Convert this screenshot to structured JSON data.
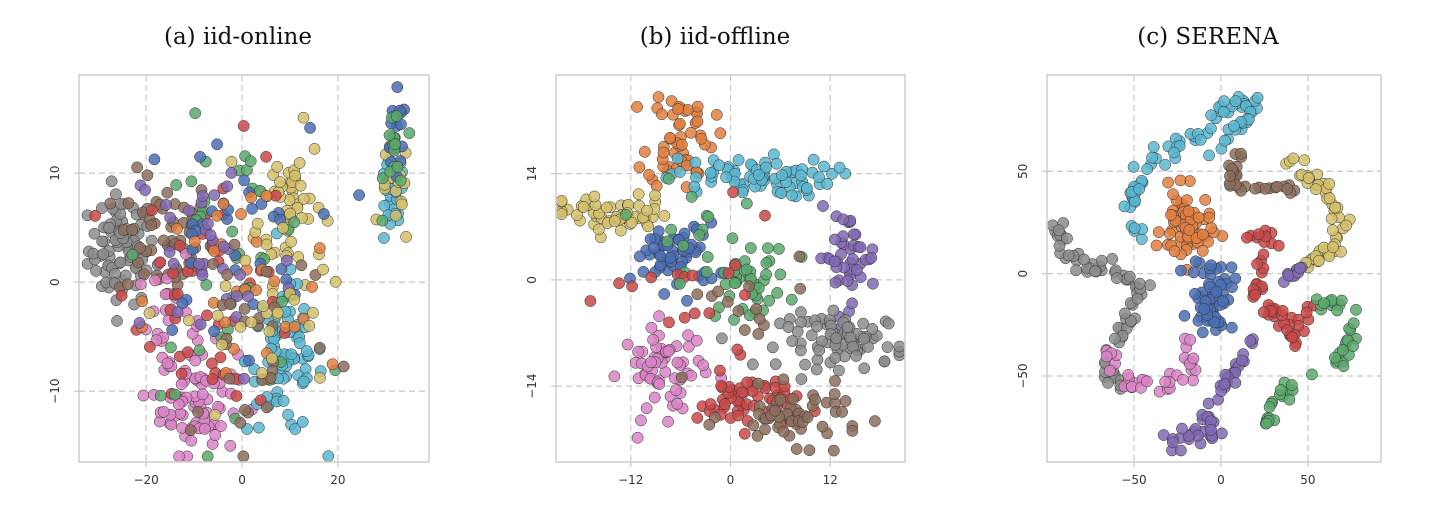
{
  "chart_data": [
    {
      "type": "scatter",
      "title": "(a) iid-online",
      "xlabel": "",
      "ylabel": "",
      "xlim": [
        -34,
        39
      ],
      "ylim": [
        -16.5,
        19
      ],
      "xticks": [
        -20,
        0,
        20
      ],
      "yticks": [
        -10,
        0,
        10
      ],
      "xtick_labels": [
        "−20",
        "0",
        "20"
      ],
      "ytick_labels": [
        "−10",
        "0",
        "10"
      ],
      "grid": true,
      "clusters": [
        {
          "color": "#8c8c8c",
          "cx": -25,
          "cy": 3,
          "sx": 3.5,
          "sy": 2.5,
          "n": 90
        },
        {
          "color": "#8c6d5c",
          "cx": -16,
          "cy": 4,
          "sx": 5,
          "sy": 3,
          "n": 55
        },
        {
          "color": "#d4bf6b",
          "cx": 10,
          "cy": 7,
          "sx": 3.5,
          "sy": 3.5,
          "n": 55
        },
        {
          "color": "#d983c4",
          "cx": -9,
          "cy": -11,
          "sx": 4,
          "sy": 2.5,
          "n": 70
        },
        {
          "color": "#d983c4",
          "cx": -15,
          "cy": -4,
          "sx": 3.5,
          "sy": 3,
          "n": 30
        },
        {
          "color": "#5bb6d0",
          "cx": 9,
          "cy": -7,
          "sx": 4,
          "sy": 3.5,
          "n": 80
        },
        {
          "color": "#5bb6d0",
          "cx": 31,
          "cy": 7,
          "sx": 1.5,
          "sy": 2,
          "n": 22
        },
        {
          "color": "#d4bf6b",
          "cx": 32,
          "cy": 8,
          "sx": 1.5,
          "sy": 2.5,
          "n": 18
        },
        {
          "color": "#4a6fb4",
          "cx": 32,
          "cy": 13,
          "sx": 1.2,
          "sy": 2,
          "n": 18
        },
        {
          "color": "#5aa86c",
          "cx": 32,
          "cy": 12,
          "sx": 1.2,
          "sy": 2.5,
          "n": 14
        },
        {
          "color": "#c94848",
          "cx": -5,
          "cy": 0,
          "sx": 9,
          "sy": 6,
          "n": 45
        },
        {
          "color": "#5aa86c",
          "cx": -2,
          "cy": 2,
          "sx": 9,
          "sy": 6,
          "n": 40
        },
        {
          "color": "#4a6fb4",
          "cx": -4,
          "cy": 4,
          "sx": 9,
          "sy": 5,
          "n": 35
        },
        {
          "color": "#e07f3f",
          "cx": 0,
          "cy": -2,
          "sx": 10,
          "sy": 6,
          "n": 30
        },
        {
          "color": "#8168b3",
          "cx": -6,
          "cy": 2,
          "sx": 9,
          "sy": 6,
          "n": 35
        },
        {
          "color": "#8c6d5c",
          "cx": 2,
          "cy": -4,
          "sx": 9,
          "sy": 6,
          "n": 30
        },
        {
          "color": "#d4bf6b",
          "cx": 4,
          "cy": -4,
          "sx": 8,
          "sy": 5,
          "n": 25
        }
      ]
    },
    {
      "type": "scatter",
      "title": "(b) iid-offline",
      "xlabel": "",
      "ylabel": "",
      "xlim": [
        -21,
        21
      ],
      "ylim": [
        -24,
        27
      ],
      "xticks": [
        -12,
        0,
        12
      ],
      "yticks": [
        -14,
        0,
        14
      ],
      "xtick_labels": [
        "−12",
        "0",
        "12"
      ],
      "ytick_labels": [
        "−14",
        "0",
        "14"
      ],
      "grid": true,
      "clusters": [
        {
          "color": "#e07f3f",
          "cx": -6,
          "cy": 19,
          "sx": 2,
          "sy": 3.5,
          "n": 55
        },
        {
          "color": "#5bb6d0",
          "cx": 2,
          "cy": 13.5,
          "sx": 5,
          "sy": 1.3,
          "n": 75
        },
        {
          "color": "#d4bf6b",
          "cx": -14,
          "cy": 8.5,
          "sx": 3.5,
          "sy": 1.3,
          "n": 55
        },
        {
          "color": "#4a6fb4",
          "cx": -6.5,
          "cy": 3,
          "sx": 2.5,
          "sy": 2.2,
          "n": 60
        },
        {
          "color": "#5aa86c",
          "cx": 2,
          "cy": 0,
          "sx": 2.5,
          "sy": 2.5,
          "n": 45
        },
        {
          "color": "#8168b3",
          "cx": 14,
          "cy": 3,
          "sx": 1.8,
          "sy": 3,
          "n": 45
        },
        {
          "color": "#8c8c8c",
          "cx": 14,
          "cy": -8,
          "sx": 4,
          "sy": 1.8,
          "n": 80
        },
        {
          "color": "#d983c4",
          "cx": -8,
          "cy": -12,
          "sx": 2.5,
          "sy": 3,
          "n": 60
        },
        {
          "color": "#c94848",
          "cx": 2,
          "cy": -16,
          "sx": 3,
          "sy": 1.8,
          "n": 55
        },
        {
          "color": "#8c6d5c",
          "cx": 8,
          "cy": -18,
          "sx": 4,
          "sy": 1.8,
          "n": 55
        },
        {
          "color": "#c94848",
          "cx": -4,
          "cy": -3,
          "sx": 5,
          "sy": 5,
          "n": 18
        },
        {
          "color": "#8c6d5c",
          "cx": 0,
          "cy": -6,
          "sx": 5,
          "sy": 5,
          "n": 14
        },
        {
          "color": "#5aa86c",
          "cx": -4,
          "cy": 8,
          "sx": 6,
          "sy": 4,
          "n": 12
        }
      ]
    },
    {
      "type": "scatter",
      "title": "(c) SERENA",
      "xlabel": "",
      "ylabel": "",
      "xlim": [
        -100,
        92
      ],
      "ylim": [
        -92,
        97
      ],
      "xticks": [
        -50,
        0,
        50
      ],
      "yticks": [
        -50,
        0,
        50
      ],
      "xtick_labels": [
        "−50",
        "0",
        "50"
      ],
      "ytick_labels": [
        "−50",
        "0",
        "50"
      ],
      "grid": true,
      "curves": [
        {
          "color": "#5bb6d0",
          "path": [
            [
              -48,
              20
            ],
            [
              -52,
              35
            ],
            [
              -45,
              50
            ],
            [
              -35,
              58
            ],
            [
              -25,
              64
            ],
            [
              -10,
              70
            ],
            [
              5,
              83
            ],
            [
              15,
              82
            ],
            [
              22,
              76
            ]
          ],
          "n": 65
        },
        {
          "color": "#5bb6d0",
          "path": [
            [
              -5,
              58
            ],
            [
              8,
              70
            ],
            [
              15,
              78
            ]
          ],
          "n": 15
        },
        {
          "color": "#8c6d5c",
          "path": [
            [
              12,
              58
            ],
            [
              5,
              45
            ],
            [
              15,
              41
            ],
            [
              28,
              42
            ],
            [
              40,
              41
            ]
          ],
          "n": 30
        },
        {
          "color": "#d4bf6b",
          "path": [
            [
              38,
              56
            ],
            [
              45,
              52
            ],
            [
              60,
              40
            ],
            [
              70,
              25
            ],
            [
              65,
              12
            ],
            [
              55,
              8
            ],
            [
              45,
              0
            ]
          ],
          "n": 50
        },
        {
          "color": "#8168b3",
          "path": [
            [
              48,
              5
            ],
            [
              42,
              0
            ],
            [
              38,
              -5
            ]
          ],
          "n": 10
        },
        {
          "color": "#8c8c8c",
          "path": [
            [
              -95,
              25
            ],
            [
              -90,
              10
            ],
            [
              -75,
              3
            ],
            [
              -60,
              0
            ],
            [
              -45,
              -5
            ],
            [
              -52,
              -22
            ],
            [
              -62,
              -35
            ],
            [
              -65,
              -45
            ]
          ],
          "n": 60
        },
        {
          "color": "#8c8c8c",
          "path": [
            [
              -65,
              -45
            ],
            [
              -62,
              -52
            ],
            [
              -55,
              -55
            ]
          ],
          "n": 10
        },
        {
          "color": "#d983c4",
          "path": [
            [
              -65,
              -35
            ],
            [
              -60,
              -48
            ],
            [
              -50,
              -55
            ],
            [
              -35,
              -55
            ],
            [
              -20,
              -50
            ]
          ],
          "n": 25
        },
        {
          "color": "#d983c4",
          "path": [
            [
              -20,
              -50
            ],
            [
              -15,
              -40
            ],
            [
              -18,
              -32
            ]
          ],
          "n": 10
        },
        {
          "color": "#c94848",
          "path": [
            [
              10,
              18
            ],
            [
              22,
              20
            ],
            [
              28,
              18
            ],
            [
              25,
              8
            ],
            [
              20,
              -5
            ],
            [
              25,
              -15
            ],
            [
              38,
              -25
            ],
            [
              42,
              -35
            ],
            [
              48,
              -20
            ],
            [
              55,
              -15
            ]
          ],
          "n": 55
        },
        {
          "color": "#5aa86c",
          "path": [
            [
              55,
              -15
            ],
            [
              70,
              -15
            ],
            [
              75,
              -30
            ],
            [
              68,
              -45
            ],
            [
              55,
              -50
            ]
          ],
          "n": 30
        },
        {
          "color": "#5aa86c",
          "path": [
            [
              42,
              -55
            ],
            [
              30,
              -62
            ],
            [
              25,
              -75
            ]
          ],
          "n": 18
        },
        {
          "color": "#8168b3",
          "path": [
            [
              18,
              -30
            ],
            [
              10,
              -45
            ],
            [
              0,
              -55
            ],
            [
              -5,
              -65
            ],
            [
              -10,
              -75
            ]
          ],
          "n": 30
        },
        {
          "color": "#8168b3",
          "path": [
            [
              -10,
              -75
            ],
            [
              -20,
              -80
            ],
            [
              -30,
              -82
            ],
            [
              -12,
              -80
            ],
            [
              0,
              -80
            ]
          ],
          "n": 20
        }
      ],
      "clusters": [
        {
          "color": "#e07f3f",
          "cx": -20,
          "cy": 22,
          "sx": 7,
          "sy": 9,
          "n": 65
        },
        {
          "color": "#4a6fb4",
          "cx": -5,
          "cy": -10,
          "sx": 6,
          "sy": 9,
          "n": 60
        }
      ]
    }
  ]
}
